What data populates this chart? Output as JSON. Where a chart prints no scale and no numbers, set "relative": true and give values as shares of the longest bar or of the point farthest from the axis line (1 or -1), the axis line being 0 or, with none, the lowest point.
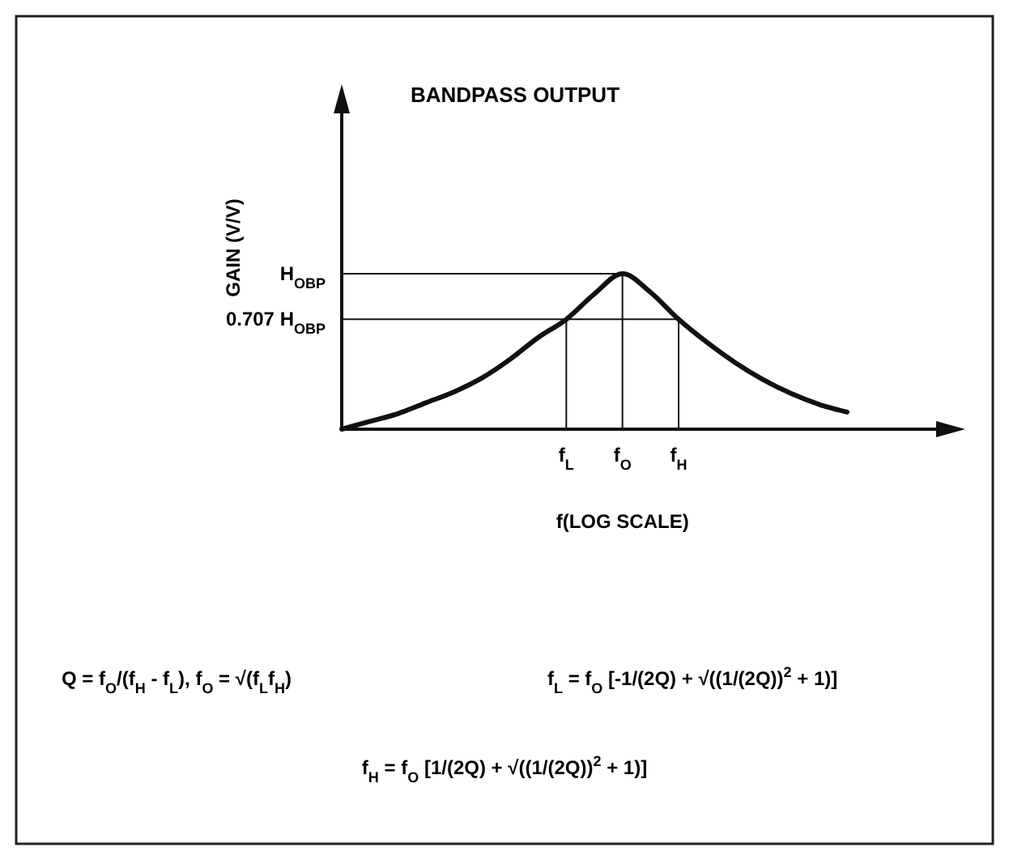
{
  "chart_data": {
    "type": "line",
    "title": "BANDPASS OUTPUT",
    "xlabel": "f(LOG SCALE)",
    "ylabel": "GAIN (V/V)",
    "relative": true,
    "categories": [
      null,
      null,
      null,
      null,
      null,
      null,
      null,
      null,
      "f$_{L}$",
      null,
      "f$_{O}$",
      null,
      "f$_{H}$",
      null,
      null,
      null,
      null,
      null,
      null
    ],
    "series": [
      {
        "color": "#111111",
        "values": [
          0,
          0.05,
          0.1,
          0.17,
          0.24,
          0.33,
          0.45,
          0.59,
          0.707,
          0.87,
          1,
          0.88,
          0.707,
          0.56,
          0.43,
          0.32,
          0.23,
          0.16,
          0.11
        ]
      }
    ],
    "ref_lines": [
      {
        "axis": "y",
        "value": 1,
        "label": "H$_{OBP}$"
      },
      {
        "axis": "y",
        "value": 0.707,
        "label": "0.707 H$_{OBP}$"
      }
    ],
    "annotations": [
      "Q = f$_{O}$/(f$_{H}$ - f$_{L}$), f$_{O}$ = √(f$_{L}$f$_{H}$)",
      "f$_{L}$ = f$_{O}$ [-1/(2Q) + √((1/(2Q))$^{2}$ + 1)]",
      "f$_{H}$ = f$_{O}$ [1/(2Q) + √((1/(2Q))$^{2}$ + 1)]"
    ],
    "grid": "x",
    "marker": "none",
    "line_style": "solid"
  }
}
